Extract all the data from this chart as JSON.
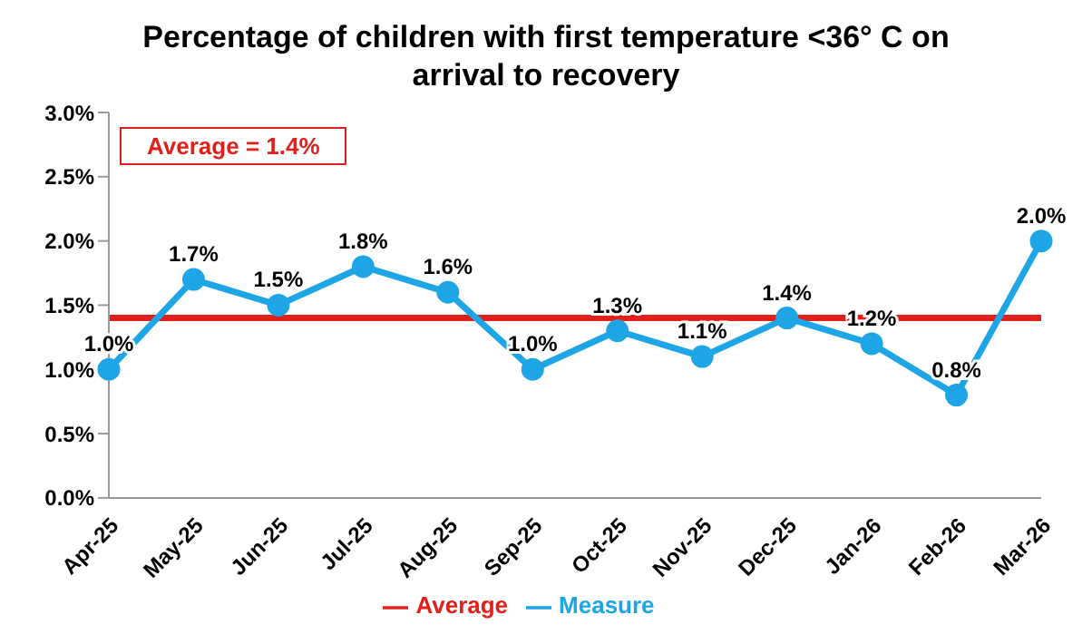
{
  "chart_data": {
    "type": "line",
    "title": "Percentage of children with first temperature <36° C on arrival to recovery",
    "categories": [
      "Apr-25",
      "May-25",
      "Jun-25",
      "Jul-25",
      "Aug-25",
      "Sep-25",
      "Oct-25",
      "Nov-25",
      "Dec-25",
      "Jan-26",
      "Feb-26",
      "Mar-26"
    ],
    "series": [
      {
        "name": "Average",
        "color": "#e0201b",
        "marker": "none",
        "values": [
          1.4,
          1.4,
          1.4,
          1.4,
          1.4,
          1.4,
          1.4,
          1.4,
          1.4,
          1.4,
          1.4,
          1.4
        ]
      },
      {
        "name": "Measure",
        "color": "#1ea5e6",
        "values": [
          1.0,
          1.7,
          1.5,
          1.8,
          1.6,
          1.0,
          1.3,
          1.1,
          1.4,
          1.2,
          0.8,
          2.0
        ],
        "value_labels": [
          "1.0%",
          "1.7%",
          "1.5%",
          "1.8%",
          "1.6%",
          "1.0%",
          "1.3%",
          "1.1%",
          "1.4%",
          "1.2%",
          "0.8%",
          "2.0%"
        ]
      }
    ],
    "ylim": [
      0,
      3
    ],
    "yticks": [
      {
        "value": 0,
        "label": "0.0%"
      },
      {
        "value": 0.5,
        "label": "0.5%"
      },
      {
        "value": 1,
        "label": "1.0%"
      },
      {
        "value": 1.5,
        "label": "1.5%"
      },
      {
        "value": 2,
        "label": "2.0%"
      },
      {
        "value": 2.5,
        "label": "2.5%"
      },
      {
        "value": 3,
        "label": "3.0%"
      }
    ],
    "annotations": [
      "Average = 1.4%"
    ],
    "grid": false,
    "legend": "bottom",
    "marker": "circle",
    "line_style": "solid"
  }
}
